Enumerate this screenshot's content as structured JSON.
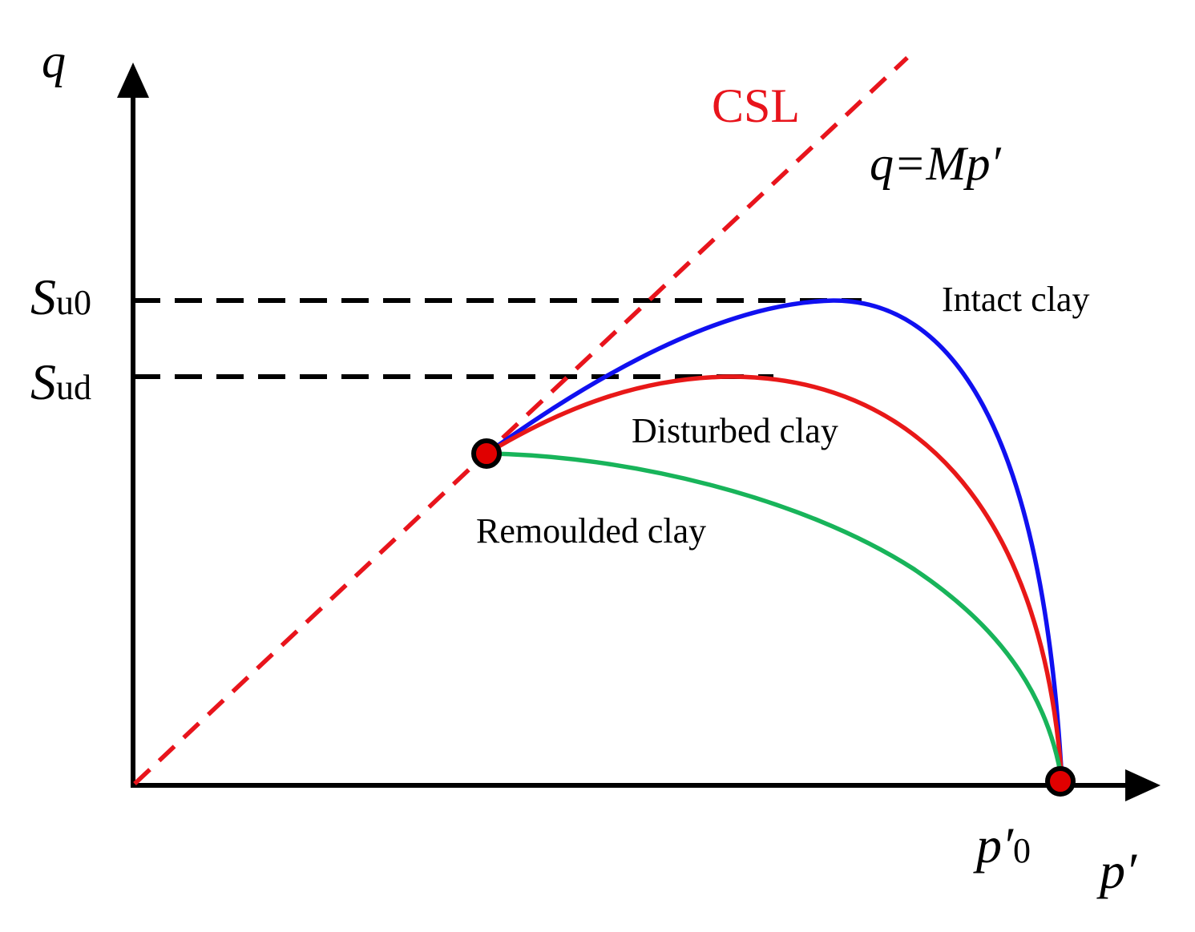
{
  "labels": {
    "y_axis": "q",
    "x_axis": "p′",
    "csl": "CSL",
    "csl_equation": "q=Mp′",
    "su0_main": "S",
    "su0_sub": "u0",
    "sud_main": "S",
    "sud_sub": "ud",
    "p0_main": "p′",
    "p0_sub": "0",
    "intact": "Intact clay",
    "disturbed": "Disturbed clay",
    "remoulded": "Remoulded clay"
  },
  "colors": {
    "axis": "#000000",
    "csl": "#e8141c",
    "intact": "#1010f0",
    "disturbed": "#e81818",
    "remoulded": "#18b45a",
    "point_fill": "#e00000"
  }
}
